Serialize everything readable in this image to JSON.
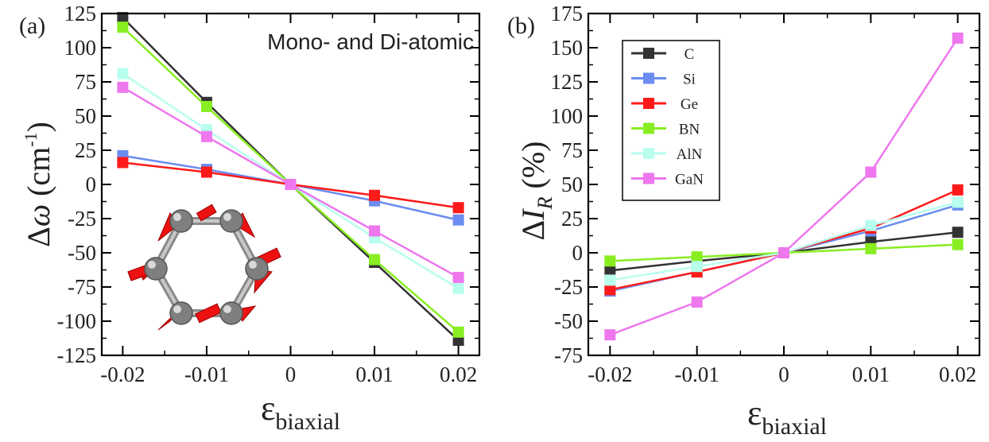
{
  "chart_data": [
    {
      "type": "line",
      "panel_label": "(a)",
      "annotation": "Mono- and Di-atomic",
      "ylabel": {
        "delta": "Δ",
        "symbol": "ω",
        "unit_open": " (cm",
        "unit_sup": "-1",
        "unit_close": ")"
      },
      "xlabel": {
        "symbol": "ε",
        "subscript": "biaxial"
      },
      "x": [
        -0.02,
        -0.01,
        0,
        0.01,
        0.02
      ],
      "x_tick_labels": [
        "-0.02",
        "-0.01",
        "0",
        "0.01",
        "0.02"
      ],
      "y_ticks": [
        125,
        100,
        75,
        50,
        25,
        0,
        -25,
        -50,
        -75,
        -100,
        -125
      ],
      "y_tick_labels": [
        "125",
        "100",
        "75",
        "50",
        "25",
        "0",
        "-25",
        "-50",
        "-75",
        "-100",
        "-125"
      ],
      "xlim": [
        -0.0225,
        0.0225
      ],
      "ylim": [
        -125,
        125
      ],
      "grid": false,
      "series": [
        {
          "name": "C",
          "color": "#333333",
          "values": [
            122,
            60,
            0,
            -57,
            -114
          ]
        },
        {
          "name": "Si",
          "color": "#6b8cf0",
          "values": [
            21,
            11,
            0,
            -12,
            -26
          ]
        },
        {
          "name": "Ge",
          "color": "#ff1a1a",
          "values": [
            16,
            9,
            0,
            -8,
            -17
          ]
        },
        {
          "name": "BN",
          "color": "#88ee22",
          "values": [
            115,
            57,
            0,
            -55,
            -108
          ]
        },
        {
          "name": "AlN",
          "color": "#b8ffee",
          "values": [
            81,
            40,
            0,
            -39,
            -76
          ]
        },
        {
          "name": "GaN",
          "color": "#ee77ee",
          "values": [
            71,
            35,
            0,
            -34,
            -68
          ]
        }
      ]
    },
    {
      "type": "line",
      "panel_label": "(b)",
      "ylabel": {
        "delta": "Δ",
        "symbol": "I",
        "subscript": "R",
        "unit": " (%)"
      },
      "xlabel": {
        "symbol": "ε",
        "subscript": "biaxial"
      },
      "x": [
        -0.02,
        -0.01,
        0,
        0.01,
        0.02
      ],
      "x_tick_labels": [
        "-0.02",
        "-0.01",
        "0",
        "0.01",
        "0.02"
      ],
      "y_ticks": [
        175,
        150,
        125,
        100,
        75,
        50,
        25,
        0,
        -25,
        -50,
        -75
      ],
      "y_tick_labels": [
        "175",
        "150",
        "125",
        "100",
        "75",
        "50",
        "25",
        "0",
        "-25",
        "-50",
        "-75"
      ],
      "xlim": [
        -0.0225,
        0.0225
      ],
      "ylim": [
        -75,
        175
      ],
      "grid": false,
      "legend_position": "top-left",
      "series": [
        {
          "name": "C",
          "color": "#333333",
          "values": [
            -13,
            -6,
            0,
            8,
            15
          ]
        },
        {
          "name": "Si",
          "color": "#6b8cf0",
          "values": [
            -28,
            -14,
            0,
            16,
            35
          ]
        },
        {
          "name": "Ge",
          "color": "#ff1a1a",
          "values": [
            -27,
            -14,
            0,
            18,
            46
          ]
        },
        {
          "name": "BN",
          "color": "#88ee22",
          "values": [
            -6,
            -3,
            0,
            3,
            6
          ]
        },
        {
          "name": "AlN",
          "color": "#b8ffee",
          "values": [
            -20,
            -10,
            0,
            20,
            37
          ]
        },
        {
          "name": "GaN",
          "color": "#ee77ee",
          "values": [
            -60,
            -36,
            0,
            59,
            157
          ]
        }
      ]
    }
  ]
}
